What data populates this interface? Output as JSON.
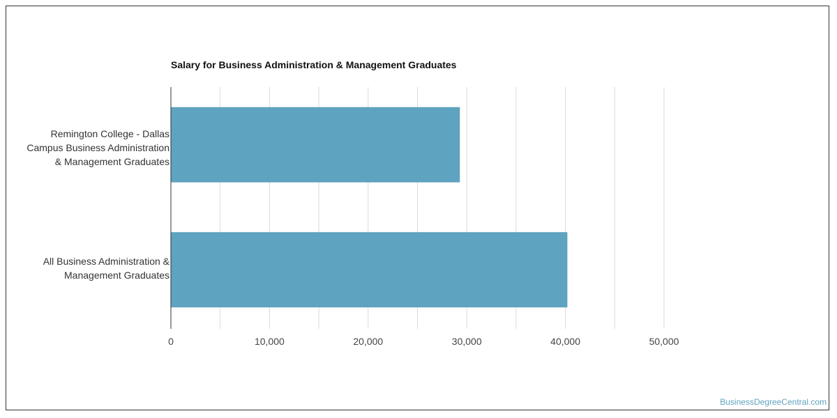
{
  "chart_data": {
    "type": "bar",
    "orientation": "horizontal",
    "title": "Salary for Business Administration & Management Graduates",
    "categories": [
      [
        "Remington College - Dallas",
        "Campus Business Administration",
        "& Management Graduates"
      ],
      [
        "All Business Administration &",
        "Management Graduates"
      ]
    ],
    "values": [
      29300,
      40200
    ],
    "xlim": [
      0,
      50000
    ],
    "x_ticks": [
      0,
      10000,
      20000,
      30000,
      40000,
      50000
    ],
    "x_tick_labels": [
      "0",
      "10,000",
      "20,000",
      "30,000",
      "40,000",
      "50,000"
    ],
    "grid": true,
    "bar_color": "#5ea3bf",
    "grid_color": "#d9d9d9"
  },
  "watermark": "BusinessDegreeCentral.com",
  "watermark_color": "#5ea3bf"
}
